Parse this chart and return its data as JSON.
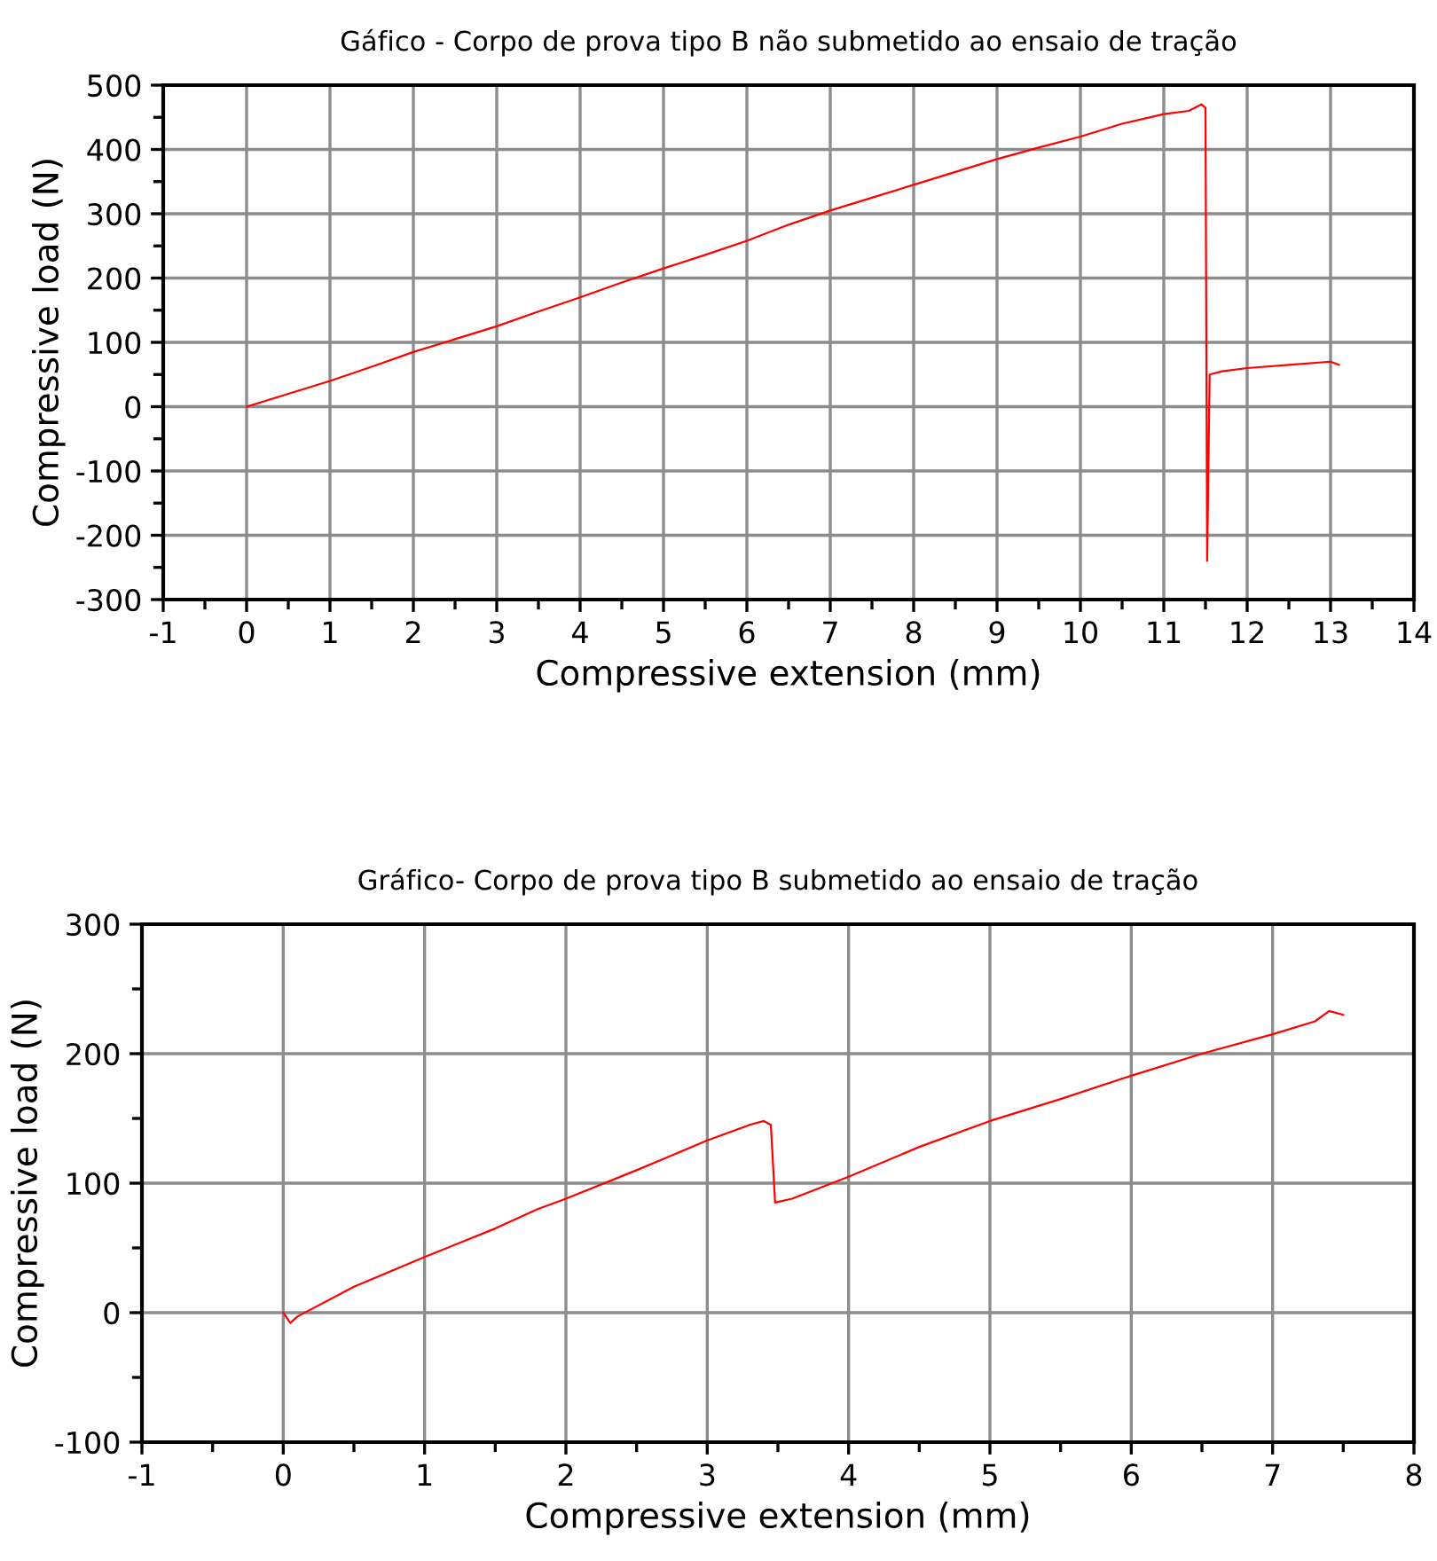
{
  "chart_data": [
    {
      "type": "line",
      "title": "Gáfico - Corpo de prova tipo B não submetido ao ensaio de tração",
      "xlabel": "Compressive extension (mm)",
      "ylabel": "Compressive load (N)",
      "xlim": [
        -1,
        14
      ],
      "xticks": [
        -1,
        0,
        1,
        2,
        3,
        4,
        5,
        6,
        7,
        8,
        9,
        10,
        11,
        12,
        13,
        14
      ],
      "ylim": [
        -300,
        500
      ],
      "yticks": [
        -300,
        -200,
        -100,
        0,
        100,
        200,
        300,
        400,
        500
      ],
      "grid": true,
      "marker": "none",
      "line_style": "solid",
      "series": [
        {
          "color": "#ff0000",
          "x": [
            0,
            0.5,
            1,
            1.5,
            2,
            2.5,
            3,
            3.5,
            4,
            4.5,
            5,
            5.5,
            6,
            6.5,
            7,
            7.5,
            8,
            8.5,
            9,
            9.5,
            10,
            10.5,
            11,
            11.3,
            11.45,
            11.5,
            11.52,
            11.55,
            11.7,
            12,
            12.5,
            13,
            13.1
          ],
          "values": [
            0,
            20,
            40,
            62,
            85,
            105,
            125,
            148,
            170,
            193,
            215,
            236,
            258,
            283,
            305,
            325,
            345,
            365,
            385,
            403,
            420,
            440,
            455,
            460,
            470,
            465,
            -240,
            50,
            55,
            60,
            65,
            70,
            65
          ]
        }
      ]
    },
    {
      "type": "line",
      "title": "Gráfico- Corpo de prova tipo B submetido ao ensaio de tração",
      "xlabel": "Compressive extension (mm)",
      "ylabel": "Compressive load (N)",
      "xlim": [
        -1,
        8
      ],
      "xticks": [
        -1,
        0,
        1,
        2,
        3,
        4,
        5,
        6,
        7,
        8
      ],
      "ylim": [
        -100,
        300
      ],
      "yticks": [
        -100,
        0,
        100,
        200,
        300
      ],
      "grid": true,
      "marker": "none",
      "line_style": "solid",
      "series": [
        {
          "color": "#ff0000",
          "x": [
            0,
            0.05,
            0.1,
            0.5,
            1,
            1.5,
            1.8,
            2,
            2.5,
            3,
            3.3,
            3.4,
            3.45,
            3.48,
            3.6,
            4,
            4.5,
            5,
            5.5,
            6,
            6.5,
            7,
            7.3,
            7.4,
            7.5
          ],
          "values": [
            0,
            -8,
            -3,
            20,
            43,
            65,
            80,
            88,
            110,
            133,
            145,
            148,
            145,
            85,
            88,
            105,
            128,
            148,
            165,
            183,
            200,
            215,
            225,
            233,
            230
          ]
        }
      ]
    }
  ]
}
